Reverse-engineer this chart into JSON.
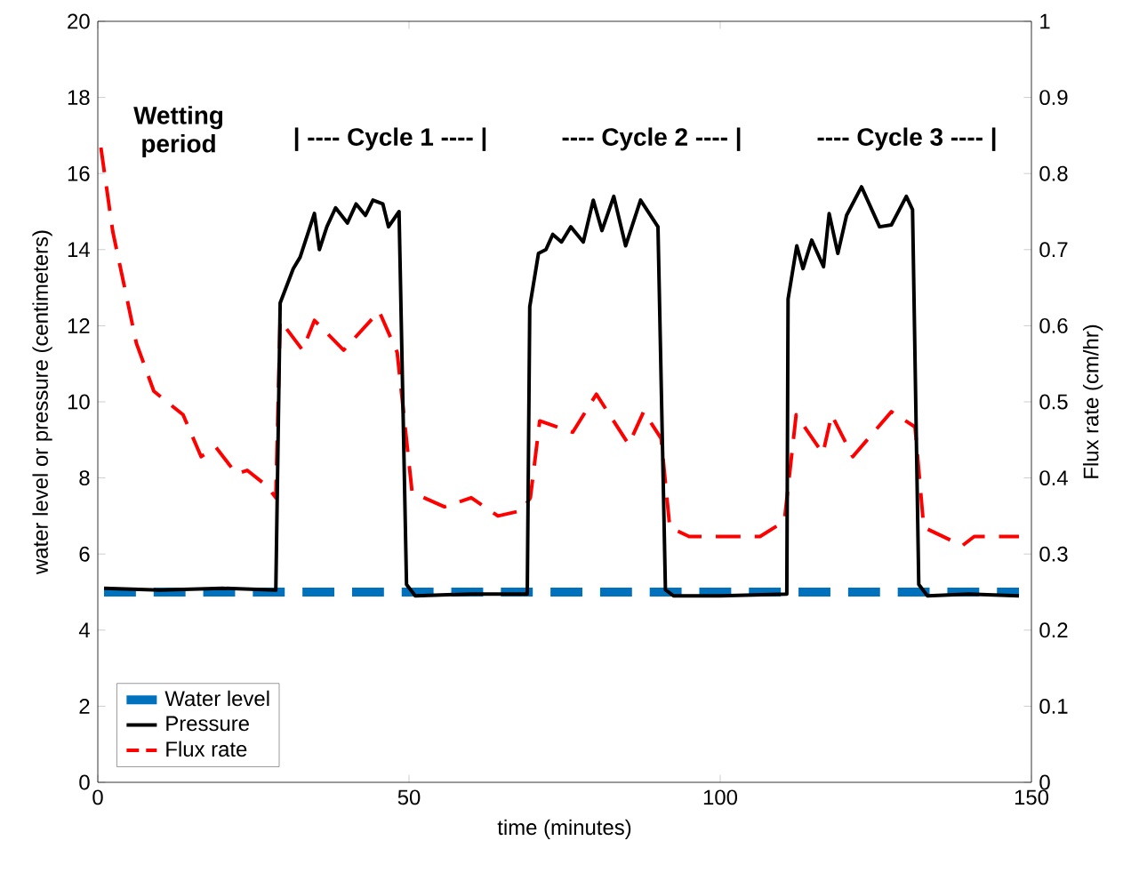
{
  "chart_data": {
    "type": "line",
    "xlabel": "time (minutes)",
    "ylabel": "water level or pressure (centimeters)",
    "y2label": "Flux rate (cm/hr)",
    "xlim": [
      0,
      150
    ],
    "xticks": [
      0,
      50,
      100,
      150
    ],
    "ylim": [
      0,
      20
    ],
    "yticks": [
      0,
      2,
      4,
      6,
      8,
      10,
      12,
      14,
      16,
      18,
      20
    ],
    "y2lim": [
      0,
      1
    ],
    "y2ticks": [
      0,
      0.1,
      0.2,
      0.3,
      0.4,
      0.5,
      0.6,
      0.7,
      0.8,
      0.9,
      1
    ],
    "legend": "bottom left",
    "grid": false,
    "marker": "none",
    "annotations": [
      "Wetting period",
      "| ---- Cycle 1 ---- |",
      "---- Cycle 2 ---- |",
      "---- Cycle 3 ---- |"
    ],
    "series": [
      {
        "name": "Water level",
        "color": "#0072bd",
        "line_style": "dashed",
        "x": [
          1,
          148
        ],
        "values": [
          5,
          5
        ]
      },
      {
        "name": "Pressure",
        "color": "#000000",
        "line_style": "solid",
        "x": [
          1,
          10,
          20,
          28.6,
          29.3,
          31.4,
          32.5,
          34.8,
          35.6,
          36.8,
          38.2,
          40.1,
          41.5,
          43,
          44.2,
          45.8,
          46.7,
          48.4,
          49.6,
          51,
          60,
          69.0,
          69.4,
          70.8,
          72,
          73.1,
          74.5,
          76,
          78,
          79.6,
          81,
          82.9,
          84.8,
          87.2,
          90.0,
          91.2,
          92.5,
          100,
          110.7,
          110.9,
          112.3,
          113.3,
          114.7,
          116.6,
          117.5,
          118.9,
          120.3,
          122.7,
          125.6,
          127.5,
          129.9,
          130.9,
          131.9,
          133.3,
          140,
          148
        ],
        "values": [
          5.1,
          5.05,
          5.1,
          5.05,
          12.6,
          13.5,
          13.8,
          14.95,
          14.0,
          14.6,
          15.1,
          14.7,
          15.2,
          14.9,
          15.3,
          15.2,
          14.6,
          15.0,
          5.2,
          4.9,
          4.95,
          4.95,
          12.5,
          13.9,
          14.0,
          14.4,
          14.2,
          14.6,
          14.2,
          15.3,
          14.5,
          15.4,
          14.1,
          15.3,
          14.6,
          5.06,
          4.9,
          4.9,
          4.95,
          12.7,
          14.1,
          13.5,
          14.25,
          13.55,
          14.95,
          13.9,
          14.9,
          15.65,
          14.6,
          14.65,
          15.4,
          15.05,
          5.2,
          4.9,
          4.95,
          4.9
        ]
      },
      {
        "name": "Flux rate",
        "color": "#ff0000",
        "line_style": "dashed",
        "axis": "y2",
        "x": [
          0.5,
          2.4,
          6.2,
          9.0,
          13.7,
          16.6,
          19,
          22.3,
          24,
          27.1,
          28.6,
          29.3,
          32.9,
          34.8,
          39.5,
          45.2,
          48.1,
          50.5,
          55.7,
          60,
          64.3,
          68.1,
          69.5,
          71.0,
          76.3,
          80.1,
          85.3,
          87.7,
          90.5,
          91.9,
          95,
          106.4,
          110.3,
          112.2,
          116.5,
          117.9,
          121.3,
          127.5,
          131.3,
          132.7,
          138.9,
          140.8,
          148
        ],
        "values": [
          0.834,
          0.724,
          0.577,
          0.514,
          0.483,
          0.428,
          0.44,
          0.405,
          0.41,
          0.39,
          0.374,
          0.607,
          0.568,
          0.607,
          0.568,
          0.619,
          0.565,
          0.381,
          0.362,
          0.374,
          0.35,
          0.357,
          0.374,
          0.475,
          0.46,
          0.51,
          0.444,
          0.487,
          0.452,
          0.335,
          0.323,
          0.323,
          0.343,
          0.483,
          0.432,
          0.483,
          0.428,
          0.487,
          0.467,
          0.335,
          0.311,
          0.323,
          0.323
        ]
      }
    ]
  }
}
